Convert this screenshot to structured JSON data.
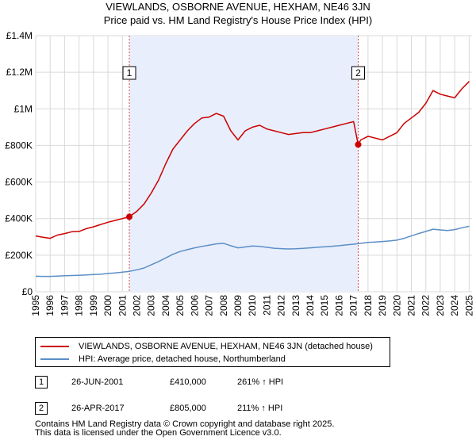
{
  "chart_data": {
    "type": "line",
    "title": "VIEWLANDS, OSBORNE AVENUE, HEXHAM, NE46 3JN",
    "subtitle": "Price paid vs. HM Land Registry's House Price Index (HPI)",
    "xlim": [
      1995.0,
      2025.2
    ],
    "ylim": [
      0,
      1400000
    ],
    "y_ticks": [
      0,
      200000,
      400000,
      600000,
      800000,
      1000000,
      1200000,
      1400000
    ],
    "y_tick_labels": [
      "£0",
      "£200K",
      "£400K",
      "£600K",
      "£800K",
      "£1M",
      "£1.2M",
      "£1.4M"
    ],
    "x_ticks": [
      1995,
      1996,
      1997,
      1998,
      1999,
      2000,
      2001,
      2002,
      2003,
      2004,
      2005,
      2006,
      2007,
      2008,
      2009,
      2010,
      2011,
      2012,
      2013,
      2014,
      2015,
      2016,
      2017,
      2018,
      2019,
      2020,
      2021,
      2022,
      2023,
      2024,
      2025
    ],
    "x_tick_labels": [
      "1995",
      "1996",
      "1997",
      "1998",
      "1999",
      "2000",
      "2001",
      "2002",
      "2003",
      "2004",
      "2005",
      "2006",
      "2007",
      "2008",
      "2009",
      "2010",
      "2011",
      "2012",
      "2013",
      "2014",
      "2015",
      "2016",
      "2017",
      "2018",
      "2019",
      "2020",
      "2021",
      "2022",
      "2023",
      "2024",
      "2025"
    ],
    "shaded_region": [
      2001.48,
      2017.32
    ],
    "series": [
      {
        "name": "VIEWLANDS, OSBORNE AVENUE, HEXHAM, NE46 3JN (detached house)",
        "color": "#cc0000",
        "x": [
          1995.0,
          1995.5,
          1996.0,
          1996.5,
          1997.0,
          1997.5,
          1998.0,
          1998.5,
          1999.0,
          1999.5,
          2000.0,
          2000.5,
          2001.0,
          2001.48,
          2002.0,
          2002.5,
          2003.0,
          2003.5,
          2004.0,
          2004.5,
          2005.0,
          2005.5,
          2006.0,
          2006.5,
          2007.0,
          2007.5,
          2008.0,
          2008.5,
          2009.0,
          2009.5,
          2010.0,
          2010.5,
          2011.0,
          2011.5,
          2012.0,
          2012.5,
          2013.0,
          2013.5,
          2014.0,
          2014.5,
          2015.0,
          2015.5,
          2016.0,
          2016.5,
          2017.0,
          2017.32,
          2017.5,
          2018.0,
          2018.5,
          2019.0,
          2019.5,
          2020.0,
          2020.5,
          2021.0,
          2021.5,
          2022.0,
          2022.5,
          2023.0,
          2023.5,
          2024.0,
          2024.5,
          2025.0
        ],
        "values": [
          305000,
          298000,
          292000,
          310000,
          318000,
          328000,
          330000,
          345000,
          355000,
          368000,
          380000,
          390000,
          400000,
          410000,
          440000,
          480000,
          540000,
          610000,
          700000,
          780000,
          830000,
          880000,
          920000,
          950000,
          955000,
          975000,
          960000,
          880000,
          830000,
          880000,
          900000,
          910000,
          890000,
          880000,
          870000,
          860000,
          865000,
          870000,
          870000,
          880000,
          890000,
          900000,
          910000,
          920000,
          930000,
          805000,
          830000,
          850000,
          840000,
          830000,
          850000,
          870000,
          920000,
          950000,
          980000,
          1030000,
          1100000,
          1080000,
          1070000,
          1060000,
          1110000,
          1150000
        ]
      },
      {
        "name": "HPI: Average price, detached house, Northumberland",
        "color": "#5b8fc7",
        "x": [
          1995.0,
          1995.5,
          1996.0,
          1996.5,
          1997.0,
          1997.5,
          1998.0,
          1998.5,
          1999.0,
          1999.5,
          2000.0,
          2000.5,
          2001.0,
          2001.5,
          2002.0,
          2002.5,
          2003.0,
          2003.5,
          2004.0,
          2004.5,
          2005.0,
          2005.5,
          2006.0,
          2006.5,
          2007.0,
          2007.5,
          2008.0,
          2008.5,
          2009.0,
          2009.5,
          2010.0,
          2010.5,
          2011.0,
          2011.5,
          2012.0,
          2012.5,
          2013.0,
          2013.5,
          2014.0,
          2014.5,
          2015.0,
          2015.5,
          2016.0,
          2016.5,
          2017.0,
          2017.5,
          2018.0,
          2018.5,
          2019.0,
          2019.5,
          2020.0,
          2020.5,
          2021.0,
          2021.5,
          2022.0,
          2022.5,
          2023.0,
          2023.5,
          2024.0,
          2024.5,
          2025.0
        ],
        "values": [
          85000,
          84000,
          84000,
          86000,
          88000,
          89000,
          90000,
          92000,
          94000,
          96000,
          100000,
          103000,
          107000,
          112000,
          120000,
          130000,
          148000,
          165000,
          185000,
          205000,
          220000,
          230000,
          240000,
          248000,
          255000,
          262000,
          265000,
          252000,
          240000,
          245000,
          250000,
          248000,
          243000,
          238000,
          236000,
          234000,
          235000,
          237000,
          240000,
          243000,
          246000,
          249000,
          252000,
          256000,
          260000,
          265000,
          270000,
          272000,
          275000,
          278000,
          282000,
          292000,
          305000,
          318000,
          330000,
          342000,
          338000,
          335000,
          340000,
          350000,
          358000
        ]
      }
    ],
    "annotations": [
      {
        "label": "1",
        "x": 2001.48,
        "y": 410000
      },
      {
        "label": "2",
        "x": 2017.32,
        "y": 805000
      }
    ]
  },
  "legend": {
    "property_label": "VIEWLANDS, OSBORNE AVENUE, HEXHAM, NE46 3JN (detached house)",
    "hpi_label": "HPI: Average price, detached house, Northumberland"
  },
  "sales": [
    {
      "badge": "1",
      "date": "26-JUN-2001",
      "price": "£410,000",
      "hpi": "261% ↑ HPI"
    },
    {
      "badge": "2",
      "date": "26-APR-2017",
      "price": "£805,000",
      "hpi": "211% ↑ HPI"
    }
  ],
  "footer": {
    "line1": "Contains HM Land Registry data © Crown copyright and database right 2025.",
    "line2": "This data is licensed under the Open Government Licence v3.0."
  }
}
